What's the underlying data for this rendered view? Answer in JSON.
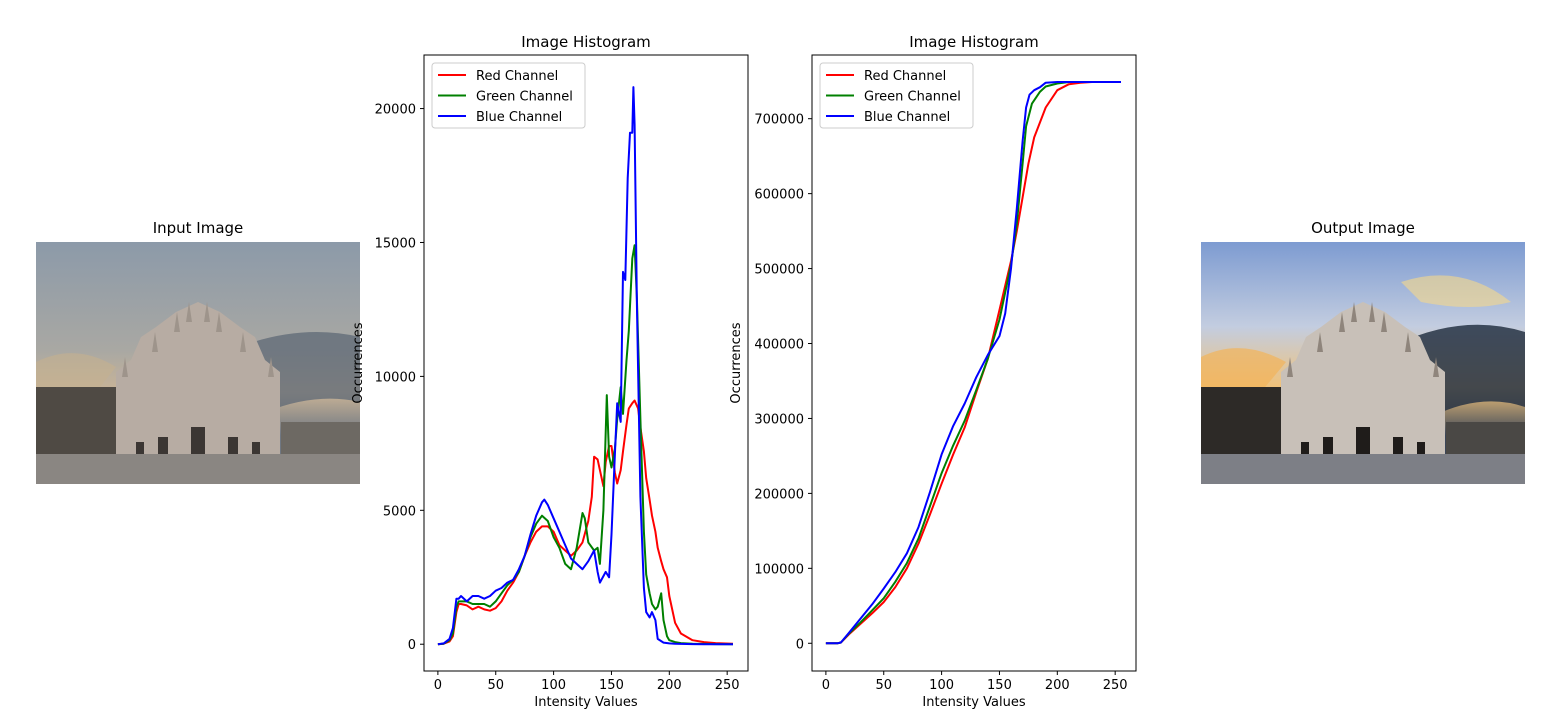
{
  "figure": {
    "input_image": {
      "title": "Input Image",
      "scene": "cathedral-facade-photo",
      "sky_colors": [
        "#8f9fad",
        "#c2b39a",
        "#5d6a78"
      ],
      "ground_color": "#8a8682",
      "building_color": "#b7aca3"
    },
    "output_image": {
      "title": "Output Image",
      "scene": "cathedral-facade-photo-equalized",
      "sky_colors": [
        "#6f8fc8",
        "#f2c878",
        "#2f3b4f"
      ],
      "ground_color": "#7d7f86",
      "building_color": "#c8c0b8"
    }
  },
  "chart_data": [
    {
      "type": "line",
      "title": "Image Histogram",
      "xlabel": "Intensity Values",
      "ylabel": "Occurrences",
      "xlim": [
        -12,
        268
      ],
      "ylim": [
        -1000,
        22000
      ],
      "xticks": [
        0,
        50,
        100,
        150,
        200,
        250
      ],
      "yticks": [
        0,
        5000,
        10000,
        15000,
        20000
      ],
      "grid": false,
      "legend": "top-left",
      "series": [
        {
          "name": "Red Channel",
          "color": "#ff0000",
          "x": [
            0,
            5,
            10,
            13,
            16,
            18,
            20,
            25,
            30,
            35,
            40,
            45,
            50,
            55,
            60,
            65,
            70,
            75,
            80,
            85,
            90,
            95,
            100,
            105,
            110,
            115,
            120,
            125,
            130,
            133,
            135,
            138,
            140,
            143,
            145,
            148,
            150,
            153,
            155,
            158,
            160,
            163,
            165,
            168,
            170,
            173,
            175,
            178,
            180,
            183,
            185,
            188,
            190,
            193,
            195,
            198,
            200,
            205,
            210,
            220,
            230,
            240,
            255
          ],
          "y": [
            0,
            20,
            100,
            300,
            1200,
            1500,
            1500,
            1450,
            1300,
            1400,
            1300,
            1250,
            1350,
            1600,
            2000,
            2300,
            2700,
            3300,
            3800,
            4200,
            4400,
            4400,
            4200,
            3700,
            3500,
            3300,
            3500,
            3800,
            4600,
            5500,
            7000,
            6900,
            6500,
            5900,
            6800,
            7400,
            7400,
            6400,
            6000,
            6500,
            7200,
            8200,
            8800,
            9000,
            9100,
            8800,
            8100,
            7200,
            6200,
            5400,
            4800,
            4200,
            3600,
            3100,
            2800,
            2500,
            1800,
            800,
            400,
            150,
            80,
            40,
            20
          ]
        },
        {
          "name": "Green Channel",
          "color": "#008000",
          "x": [
            0,
            5,
            10,
            13,
            16,
            18,
            20,
            25,
            30,
            35,
            40,
            45,
            50,
            55,
            60,
            65,
            70,
            75,
            80,
            85,
            90,
            95,
            100,
            105,
            110,
            115,
            120,
            125,
            127,
            130,
            135,
            138,
            140,
            143,
            146,
            148,
            150,
            153,
            155,
            158,
            160,
            163,
            165,
            168,
            170,
            172,
            175,
            178,
            180,
            183,
            185,
            188,
            190,
            193,
            195,
            198,
            200,
            205,
            210,
            220,
            230,
            240,
            255
          ],
          "y": [
            0,
            20,
            150,
            400,
            1400,
            1600,
            1600,
            1600,
            1500,
            1500,
            1500,
            1400,
            1600,
            1900,
            2200,
            2400,
            2700,
            3300,
            4000,
            4500,
            4800,
            4600,
            4000,
            3600,
            3000,
            2800,
            3600,
            4900,
            4700,
            3800,
            3500,
            3600,
            3000,
            5000,
            9300,
            7000,
            6600,
            7300,
            8400,
            9600,
            8600,
            10600,
            11700,
            14400,
            14900,
            12900,
            8400,
            4200,
            2600,
            1900,
            1500,
            1300,
            1400,
            1900,
            900,
            300,
            150,
            80,
            40,
            20,
            10,
            5,
            0
          ]
        },
        {
          "name": "Blue Channel",
          "color": "#0000ff",
          "x": [
            0,
            5,
            10,
            13,
            16,
            18,
            20,
            25,
            30,
            35,
            40,
            45,
            50,
            55,
            60,
            65,
            70,
            75,
            80,
            85,
            90,
            92,
            95,
            100,
            105,
            110,
            115,
            120,
            125,
            130,
            135,
            138,
            140,
            145,
            148,
            150,
            153,
            155,
            158,
            160,
            162,
            164,
            166,
            168,
            169,
            170,
            172,
            175,
            178,
            180,
            183,
            185,
            188,
            190,
            195,
            200,
            205,
            210,
            220,
            230,
            240,
            255
          ],
          "y": [
            0,
            30,
            200,
            600,
            1700,
            1700,
            1800,
            1600,
            1800,
            1800,
            1700,
            1800,
            2000,
            2100,
            2300,
            2400,
            2800,
            3300,
            4100,
            4800,
            5300,
            5400,
            5200,
            4700,
            4200,
            3700,
            3200,
            3000,
            2800,
            3100,
            3500,
            2700,
            2300,
            2700,
            2500,
            4100,
            7100,
            9000,
            8300,
            13900,
            13600,
            17400,
            19100,
            19100,
            20800,
            19400,
            12700,
            5500,
            2100,
            1200,
            1000,
            1200,
            900,
            200,
            60,
            30,
            15,
            10,
            5,
            0,
            0,
            0
          ]
        }
      ]
    },
    {
      "type": "line",
      "title": "Image Histogram",
      "xlabel": "Intensity Values",
      "ylabel": "Occurrences",
      "xlim": [
        -12,
        268
      ],
      "ylim": [
        -37000,
        785000
      ],
      "xticks": [
        0,
        50,
        100,
        150,
        200,
        250
      ],
      "yticks": [
        0,
        100000,
        200000,
        300000,
        400000,
        500000,
        600000,
        700000
      ],
      "grid": false,
      "legend": "top-left",
      "series": [
        {
          "name": "Red Channel",
          "color": "#ff0000",
          "x": [
            0,
            10,
            13,
            20,
            30,
            40,
            50,
            60,
            70,
            80,
            90,
            100,
            110,
            120,
            130,
            140,
            150,
            160,
            165,
            170,
            175,
            180,
            190,
            200,
            210,
            220,
            230,
            255
          ],
          "y": [
            0,
            0,
            1000,
            12000,
            26000,
            40000,
            55000,
            75000,
            100000,
            133000,
            172000,
            213000,
            252000,
            288000,
            335000,
            380000,
            445000,
            510000,
            550000,
            595000,
            640000,
            675000,
            715000,
            738000,
            746000,
            748000,
            749000,
            749000
          ]
        },
        {
          "name": "Green Channel",
          "color": "#008000",
          "x": [
            0,
            10,
            13,
            20,
            30,
            40,
            50,
            60,
            70,
            80,
            90,
            100,
            110,
            120,
            130,
            140,
            150,
            160,
            165,
            170,
            173,
            178,
            185,
            190,
            200,
            210,
            220,
            255
          ],
          "y": [
            0,
            0,
            1000,
            13000,
            28000,
            44000,
            60000,
            82000,
            107000,
            140000,
            183000,
            227000,
            264000,
            297000,
            338000,
            380000,
            432000,
            505000,
            560000,
            640000,
            690000,
            720000,
            736000,
            743000,
            747000,
            749000,
            749000,
            749000
          ]
        },
        {
          "name": "Blue Channel",
          "color": "#0000ff",
          "x": [
            0,
            10,
            13,
            20,
            30,
            40,
            50,
            60,
            70,
            80,
            90,
            100,
            110,
            120,
            130,
            140,
            150,
            155,
            160,
            165,
            170,
            173,
            176,
            180,
            185,
            190,
            200,
            210,
            255
          ],
          "y": [
            0,
            0,
            1000,
            14000,
            33000,
            52000,
            73000,
            95000,
            120000,
            155000,
            202000,
            252000,
            290000,
            320000,
            355000,
            385000,
            410000,
            440000,
            500000,
            580000,
            670000,
            715000,
            732000,
            738000,
            742000,
            748000,
            749000,
            749000,
            749000
          ]
        }
      ]
    }
  ]
}
